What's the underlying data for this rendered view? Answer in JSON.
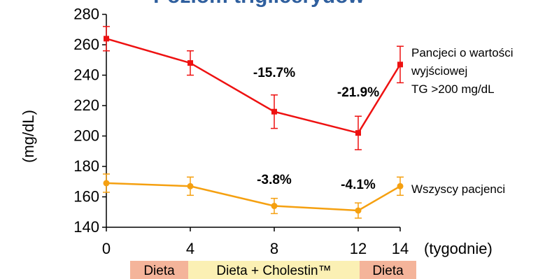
{
  "chart_data": {
    "type": "line",
    "title": "Poziom triglicerydów",
    "ylabel": "(mg/dL)",
    "xlabel": "(tygodnie)",
    "x": [
      0,
      4,
      8,
      12,
      14
    ],
    "ylim": [
      140,
      280
    ],
    "yticks": [
      140,
      160,
      180,
      200,
      220,
      240,
      260,
      280
    ],
    "grid": false,
    "series": [
      {
        "name": "Pancjeci o wartości wyjściowej TG >200 mg/dL",
        "name_lines": [
          "Pancjeci o wartości",
          "wyjściowej",
          "TG >200 mg/dL"
        ],
        "color": "#ee1111",
        "marker": "square",
        "values": [
          264,
          248,
          216,
          202,
          247
        ],
        "errors": [
          8,
          8,
          11,
          11,
          12
        ],
        "annotations": [
          {
            "x": 8,
            "text": "-15.7%"
          },
          {
            "x": 12,
            "text": "-21.9%"
          }
        ]
      },
      {
        "name": "Wszyscy pacjenci",
        "name_lines": [
          "Wszyscy pacjenci"
        ],
        "color": "#f5a010",
        "marker": "circle",
        "values": [
          169,
          167,
          154,
          151,
          167
        ],
        "errors": [
          6,
          6,
          5,
          5,
          6
        ],
        "annotations": [
          {
            "x": 8,
            "text": "-3.8%"
          },
          {
            "x": 12,
            "text": "-4.1%"
          }
        ]
      }
    ],
    "phases": [
      {
        "label": "Dieta",
        "from": 0,
        "to": 4,
        "color": "#f4b49a"
      },
      {
        "label": "Dieta + Cholestin™",
        "from": 4,
        "to": 12,
        "color": "#fbf0b4"
      },
      {
        "label": "Dieta",
        "from": 12,
        "to": 14,
        "color": "#f4b49a"
      }
    ]
  }
}
